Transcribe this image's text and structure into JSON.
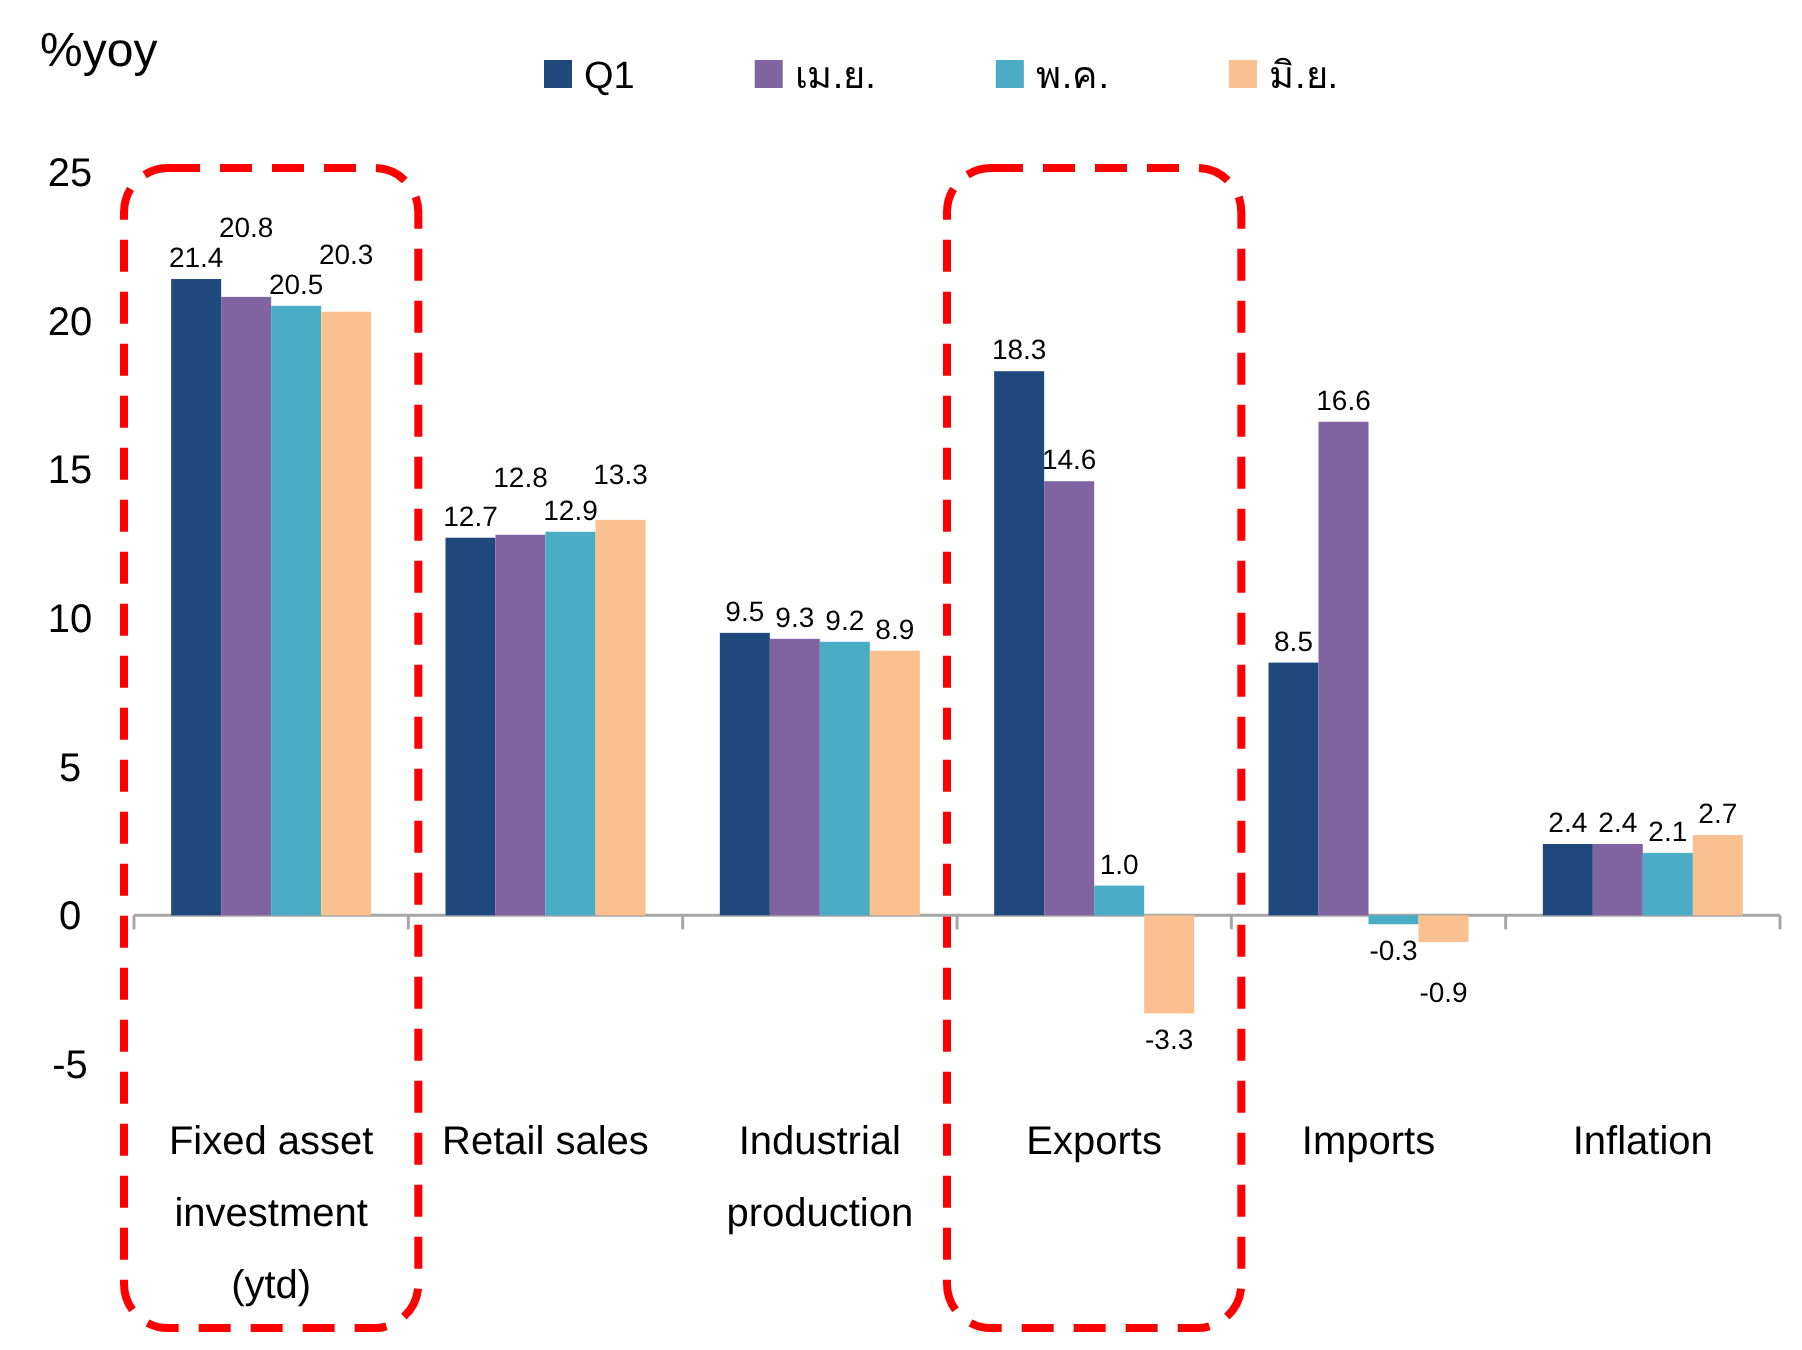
{
  "chart_data": {
    "type": "bar",
    "ylabel": "%yoy",
    "categories": [
      "Fixed asset investment (ytd)",
      "Retail sales",
      "Industrial production",
      "Exports",
      "Imports",
      "Inflation"
    ],
    "series": [
      {
        "name": "Q1",
        "color": "#1f497d",
        "values": [
          21.4,
          12.7,
          9.5,
          18.3,
          8.5,
          2.4
        ],
        "value_labels": [
          "21.4",
          "12.7",
          "9.5",
          "18.3",
          "8.5",
          "2.4"
        ]
      },
      {
        "name": "เม.ย.",
        "color": "#8064a2",
        "values": [
          20.8,
          12.8,
          9.3,
          14.6,
          16.6,
          2.4
        ],
        "value_labels": [
          "20.8",
          "12.8",
          "9.3",
          "14.6",
          "16.6",
          "2.4"
        ]
      },
      {
        "name": "พ.ค.",
        "color": "#4bacc6",
        "values": [
          20.5,
          12.9,
          9.2,
          1.0,
          -0.3,
          2.1
        ],
        "value_labels": [
          "20.5",
          "12.9",
          "9.2",
          "1.0",
          "-0.3",
          "2.1"
        ]
      },
      {
        "name": "มิ.ย.",
        "color": "#fac090",
        "values": [
          20.3,
          13.3,
          8.9,
          -3.3,
          -0.9,
          2.7
        ],
        "value_labels": [
          "20.3",
          "13.3",
          "8.9",
          "-3.3",
          "-0.9",
          "2.7"
        ]
      }
    ],
    "ylim": [
      -5,
      25
    ],
    "yticks": [
      -5,
      0,
      5,
      10,
      15,
      20,
      25
    ],
    "legend": "top"
  }
}
